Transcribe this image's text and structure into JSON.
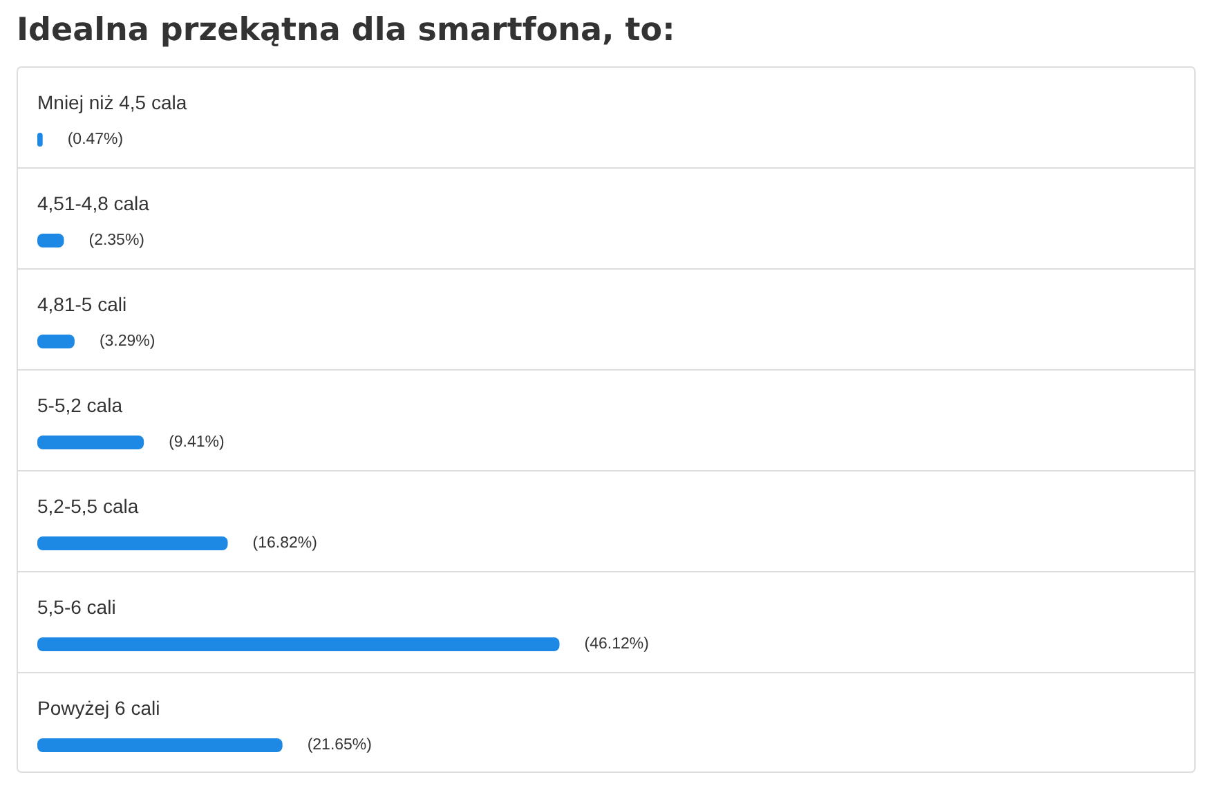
{
  "chart_data": {
    "type": "bar",
    "orientation": "horizontal",
    "title": "Idealna przekątna dla smartfona, to:",
    "categories": [
      "Mniej niż 4,5 cala",
      "4,51-4,8 cala",
      "4,81-5 cali",
      "5-5,2 cala",
      "5,2-5,5 cala",
      "5,5-6 cali",
      "Powyżej 6 cali"
    ],
    "values": [
      0.47,
      2.35,
      3.29,
      9.41,
      16.82,
      46.12,
      21.65
    ],
    "value_labels": [
      "(0.47%)",
      "(2.35%)",
      "(3.29%)",
      "(9.41%)",
      "(16.82%)",
      "(46.12%)",
      "(21.65%)"
    ],
    "color": "#1e88e5"
  }
}
